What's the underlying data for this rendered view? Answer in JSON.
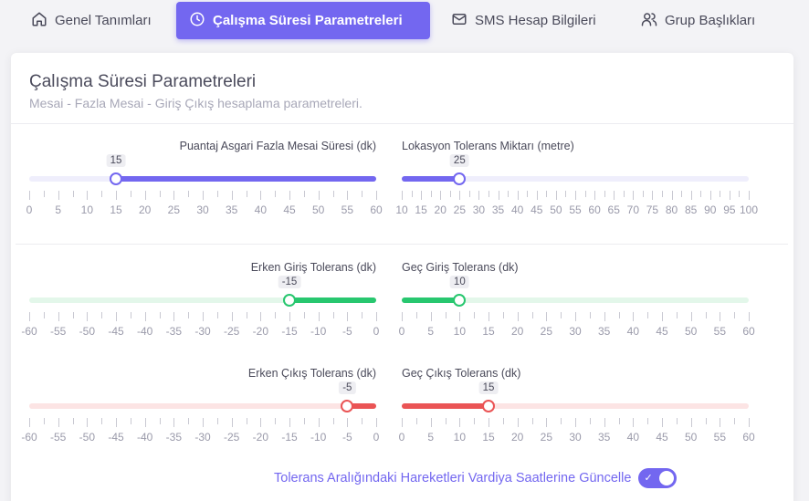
{
  "tabs": [
    {
      "label": "Genel Tanımları",
      "icon": "home-icon",
      "active": false
    },
    {
      "label": "Çalışma Süresi Parametreleri",
      "icon": "clock-icon",
      "active": true
    },
    {
      "label": "SMS Hesap Bilgileri",
      "icon": "mail-icon",
      "active": false
    },
    {
      "label": "Grup Başlıkları",
      "icon": "users-icon",
      "active": false
    }
  ],
  "card": {
    "title": "Çalışma Süresi Parametreleri",
    "subtitle": "Mesai - Fazla Mesai - Giriş Çıkış hesaplama parametreleri."
  },
  "sliders": [
    {
      "id": "fazla-mesai",
      "label": "Puantaj Asgari Fazla Mesai Süresi (dk)",
      "min": 0,
      "max": 60,
      "step_label": 5,
      "value": 15,
      "fill": "right",
      "color": "#7367f0",
      "track": "#efeefc"
    },
    {
      "id": "lokasyon",
      "label": "Lokasyon Tolerans Miktarı (metre)",
      "min": 10,
      "max": 100,
      "step_label": 5,
      "value": 25,
      "fill": "left",
      "color": "#7367f0",
      "track": "#efeefc"
    },
    {
      "id": "erken-giris",
      "label": "Erken Giriş Tolerans (dk)",
      "min": -60,
      "max": 0,
      "step_label": 5,
      "value": -15,
      "fill": "right",
      "color": "#28c76f",
      "track": "#e3f7ea"
    },
    {
      "id": "gec-giris",
      "label": "Geç Giriş Tolerans (dk)",
      "min": 0,
      "max": 60,
      "step_label": 5,
      "value": 10,
      "fill": "left",
      "color": "#28c76f",
      "track": "#e3f7ea"
    },
    {
      "id": "erken-cikis",
      "label": "Erken Çıkış Tolerans (dk)",
      "min": -60,
      "max": 0,
      "step_label": 5,
      "value": -5,
      "fill": "right",
      "color": "#ea5455",
      "track": "#fce4e4"
    },
    {
      "id": "gec-cikis",
      "label": "Geç Çıkış Tolerans (dk)",
      "min": 0,
      "max": 60,
      "step_label": 5,
      "value": 15,
      "fill": "left",
      "color": "#ea5455",
      "track": "#fce4e4"
    }
  ],
  "toggle": {
    "label": "Tolerans Aralığındaki Hareketleri Vardiya Saatlerine Güncelle",
    "checked": true,
    "color": "#7367f0"
  }
}
